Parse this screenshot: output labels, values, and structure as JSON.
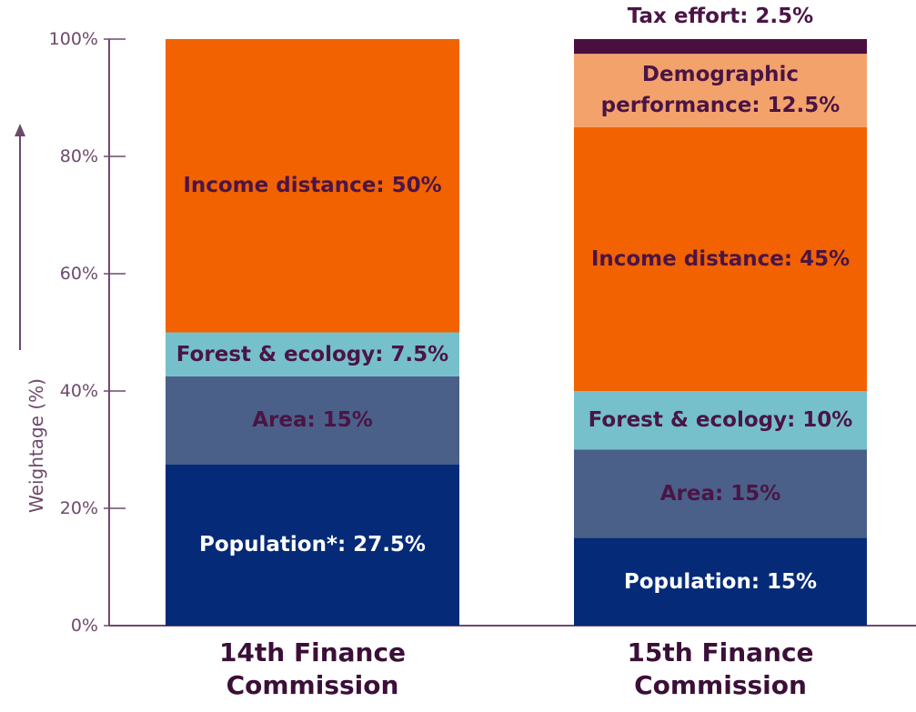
{
  "chart_data": {
    "type": "stacked_bar",
    "y_label": "Weightage (%)",
    "categories": [
      "14th Finance Commission",
      "15th Finance Commission"
    ],
    "ylim": [
      0,
      100
    ],
    "yticks": [
      {
        "value": 0,
        "label": "0%"
      },
      {
        "value": 20,
        "label": "20%"
      },
      {
        "value": 40,
        "label": "40%"
      },
      {
        "value": 60,
        "label": "60%"
      },
      {
        "value": 80,
        "label": "80%"
      },
      {
        "value": 100,
        "label": "100%"
      }
    ],
    "series": [
      {
        "color": "#052a78",
        "label_color": "#ffffff",
        "values": [
          27.5,
          15
        ],
        "value_labels": [
          "Population*: 27.5%",
          "Population: 15%"
        ]
      },
      {
        "color": "#4b6088",
        "label_color": "#4a1545",
        "values": [
          15,
          15
        ],
        "value_labels": [
          "Area: 15%",
          "Area: 15%"
        ]
      },
      {
        "color": "#76c0cc",
        "label_color": "#4a1545",
        "values": [
          7.5,
          10
        ],
        "value_labels": [
          "Forest & ecology: 7.5%",
          "Forest & ecology: 10%"
        ]
      },
      {
        "color": "#f26200",
        "label_color": "#4a1545",
        "values": [
          50,
          45
        ],
        "value_labels": [
          "Income distance: 50%",
          "Income distance: 45%"
        ]
      },
      {
        "color": "#f4a26c",
        "label_color": "#4a1545",
        "values": [
          null,
          12.5
        ],
        "value_labels": [
          null,
          "Demographic performance: 12.5%"
        ]
      },
      {
        "color": "#4a0f3e",
        "label_color": "#4a1545",
        "values": [
          null,
          2.5
        ],
        "value_labels": [
          null,
          "Tax effort: 2.5%"
        ]
      }
    ]
  }
}
